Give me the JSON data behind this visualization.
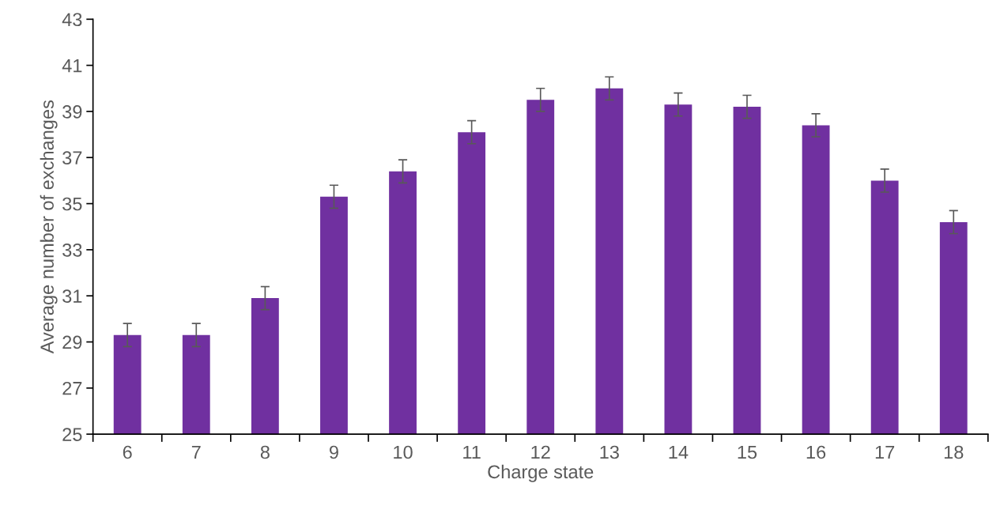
{
  "chart_data": {
    "type": "bar",
    "xlabel": "Charge state",
    "ylabel": "Average number of exchanges",
    "categories": [
      "6",
      "7",
      "8",
      "9",
      "10",
      "11",
      "12",
      "13",
      "14",
      "15",
      "16",
      "17",
      "18"
    ],
    "values": [
      29.3,
      29.3,
      30.9,
      35.3,
      36.4,
      38.1,
      39.5,
      40.0,
      39.3,
      39.2,
      38.4,
      36.0,
      34.2
    ],
    "errors": [
      0.5,
      0.5,
      0.5,
      0.5,
      0.5,
      0.5,
      0.5,
      0.5,
      0.5,
      0.5,
      0.5,
      0.5,
      0.5
    ],
    "color": "#7030a0",
    "ylim": [
      25,
      43
    ],
    "yticks": [
      25,
      27,
      29,
      31,
      33,
      35,
      37,
      39,
      41,
      43
    ],
    "grid": false
  }
}
